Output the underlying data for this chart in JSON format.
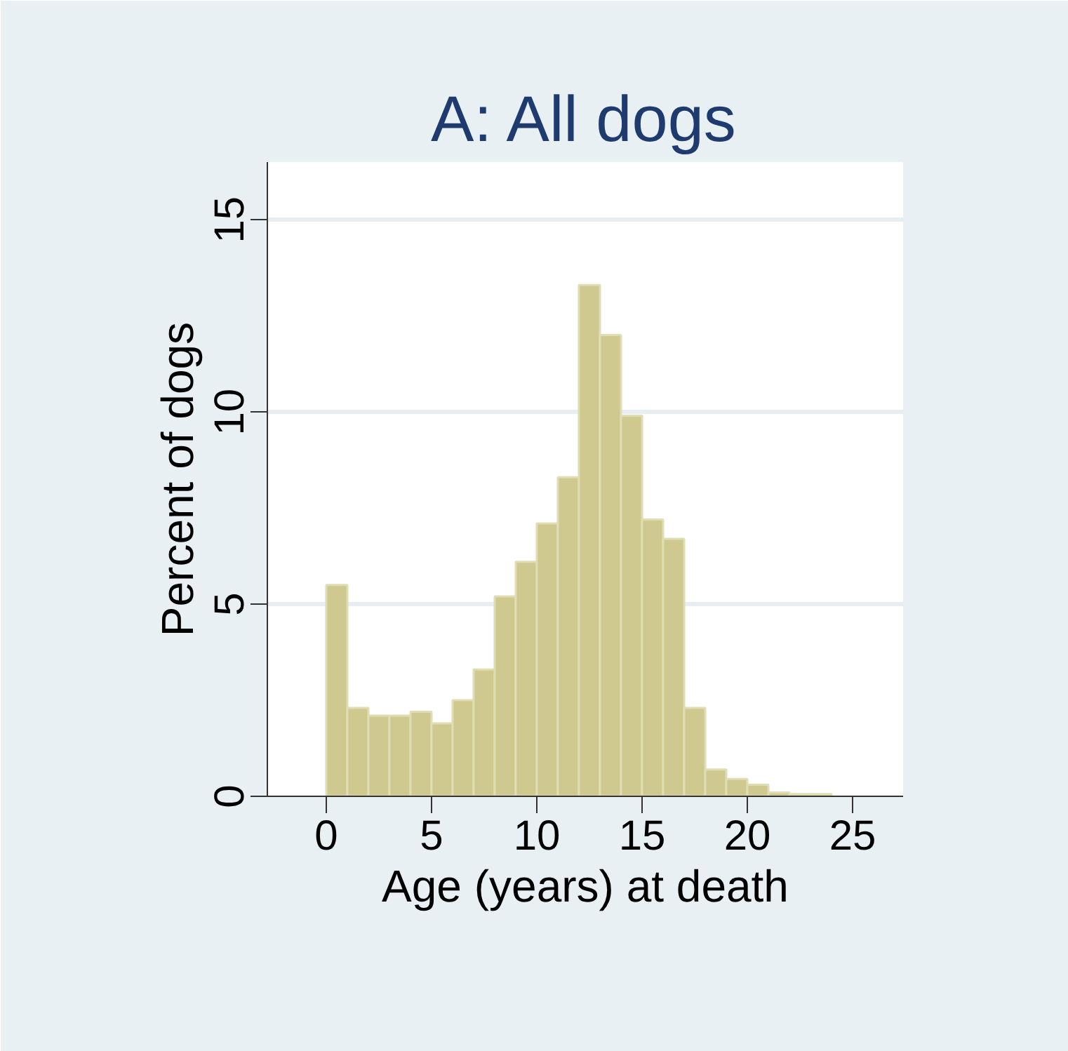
{
  "chart_data": {
    "type": "histogram",
    "title": "A: All dogs",
    "xlabel": "Age (years) at death",
    "ylabel": "Percent of dogs",
    "bins": [
      0,
      1,
      2,
      3,
      4,
      5,
      6,
      7,
      8,
      9,
      10,
      11,
      12,
      13,
      14,
      15,
      16,
      17,
      18,
      19,
      20,
      21,
      22,
      23,
      24
    ],
    "values": [
      5.5,
      2.3,
      2.1,
      2.1,
      2.2,
      1.9,
      2.5,
      3.3,
      5.2,
      6.1,
      7.1,
      8.3,
      13.3,
      12.0,
      9.9,
      7.2,
      6.7,
      2.3,
      0.7,
      0.45,
      0.3,
      0.1,
      0.06,
      0.06
    ],
    "color": "#cfc98f",
    "xlim": [
      -2.8,
      27.4
    ],
    "xticks": [
      0,
      5,
      10,
      15,
      20,
      25
    ],
    "ylim": [
      0,
      16.5
    ],
    "yticks": [
      0,
      5,
      10,
      15
    ],
    "grid": "y"
  }
}
